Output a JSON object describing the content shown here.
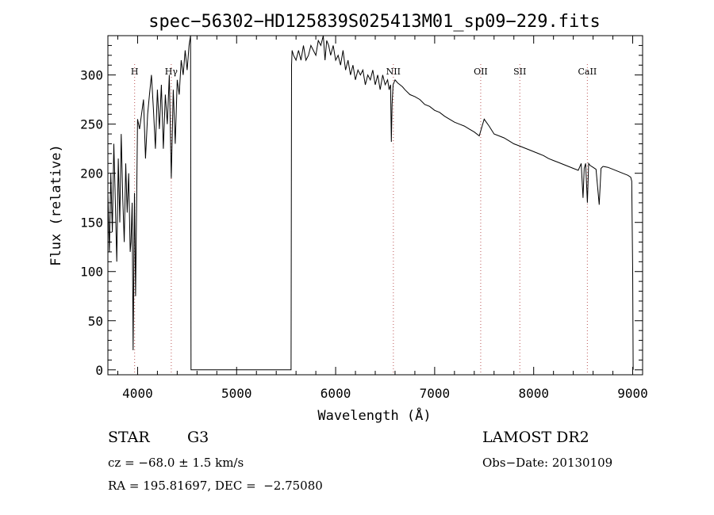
{
  "chart_data": {
    "type": "line",
    "title": "spec−56302−HD125839S025413M01_sp09−229.fits",
    "xlabel": "Wavelength (Å)",
    "ylabel": "Flux (relative)",
    "xlim": [
      3700,
      9100
    ],
    "ylim": [
      -5,
      340
    ],
    "grid": false,
    "x_ticks": [
      4000,
      5000,
      6000,
      7000,
      8000,
      9000
    ],
    "y_ticks": [
      0,
      50,
      100,
      150,
      200,
      250,
      300
    ],
    "series": [
      {
        "x": [
          3700,
          3715,
          3730,
          3745,
          3760,
          3775,
          3790,
          3805,
          3820,
          3835,
          3850,
          3865,
          3880,
          3895,
          3910,
          3925,
          3933,
          3945,
          3955,
          3968,
          3980,
          4000,
          4020,
          4040,
          4060,
          4080,
          4101,
          4120,
          4140,
          4160,
          4180,
          4200,
          4220,
          4240,
          4260,
          4280,
          4300,
          4320,
          4340,
          4360,
          4380,
          4400,
          4420,
          4440,
          4460,
          4480,
          4500,
          4520,
          4535,
          4540,
          4545,
          5550,
          5555,
          5560,
          5575,
          5600,
          5625,
          5650,
          5675,
          5700,
          5725,
          5750,
          5775,
          5800,
          5825,
          5850,
          5875,
          5893,
          5910,
          5930,
          5950,
          5975,
          6000,
          6025,
          6050,
          6075,
          6100,
          6125,
          6150,
          6175,
          6200,
          6225,
          6250,
          6275,
          6300,
          6325,
          6350,
          6375,
          6400,
          6425,
          6450,
          6475,
          6500,
          6525,
          6540,
          6555,
          6563,
          6570,
          6580,
          6600,
          6625,
          6650,
          6675,
          6700,
          6750,
          6800,
          6850,
          6900,
          6950,
          7000,
          7050,
          7100,
          7150,
          7200,
          7250,
          7300,
          7350,
          7400,
          7450,
          7500,
          7550,
          7600,
          7650,
          7700,
          7750,
          7800,
          7850,
          7900,
          7950,
          8000,
          8050,
          8100,
          8150,
          8200,
          8250,
          8300,
          8350,
          8400,
          8450,
          8480,
          8498,
          8510,
          8525,
          8542,
          8555,
          8570,
          8600,
          8630,
          8662,
          8680,
          8700,
          8750,
          8800,
          8850,
          8900,
          8950,
          8980,
          8990,
          9000,
          9005
        ],
        "y": [
          180,
          120,
          200,
          140,
          230,
          170,
          110,
          215,
          150,
          240,
          175,
          130,
          210,
          160,
          200,
          120,
          130,
          170,
          20,
          180,
          75,
          255,
          245,
          260,
          275,
          215,
          260,
          280,
          300,
          265,
          225,
          285,
          245,
          290,
          225,
          280,
          250,
          300,
          195,
          285,
          230,
          295,
          280,
          315,
          300,
          325,
          305,
          330,
          340,
          0,
          0,
          0,
          310,
          325,
          320,
          315,
          325,
          315,
          330,
          315,
          320,
          330,
          325,
          320,
          335,
          330,
          340,
          315,
          335,
          330,
          320,
          330,
          315,
          320,
          310,
          325,
          305,
          315,
          300,
          310,
          295,
          305,
          300,
          305,
          290,
          300,
          295,
          305,
          290,
          300,
          285,
          300,
          290,
          295,
          285,
          290,
          232,
          270,
          290,
          295,
          292,
          290,
          288,
          285,
          280,
          278,
          275,
          270,
          268,
          264,
          262,
          258,
          255,
          252,
          250,
          248,
          245,
          242,
          238,
          255,
          248,
          240,
          238,
          236,
          233,
          230,
          228,
          226,
          224,
          222,
          220,
          218,
          215,
          213,
          211,
          209,
          207,
          205,
          203,
          210,
          175,
          205,
          210,
          170,
          210,
          208,
          206,
          204,
          168,
          205,
          207,
          206,
          204,
          202,
          200,
          198,
          196,
          192,
          100,
          0
        ]
      }
    ],
    "annotations": [
      {
        "label": "H",
        "x": 3970
      },
      {
        "label": "Hγ",
        "x": 4340
      },
      {
        "label": "NII",
        "x": 6583
      },
      {
        "label": "OII",
        "x": 7465
      },
      {
        "label": "SII",
        "x": 7860
      },
      {
        "label": "CaII",
        "x": 8542
      }
    ]
  },
  "info": {
    "object_class": "STAR",
    "subclass": "G3",
    "survey": "LAMOST DR2",
    "redshift": "cz = −68.0 ± 1.5 km/s",
    "obs_date": "Obs−Date: 20130109",
    "coords": "RA = 195.81697, DEC =  −2.75080"
  }
}
